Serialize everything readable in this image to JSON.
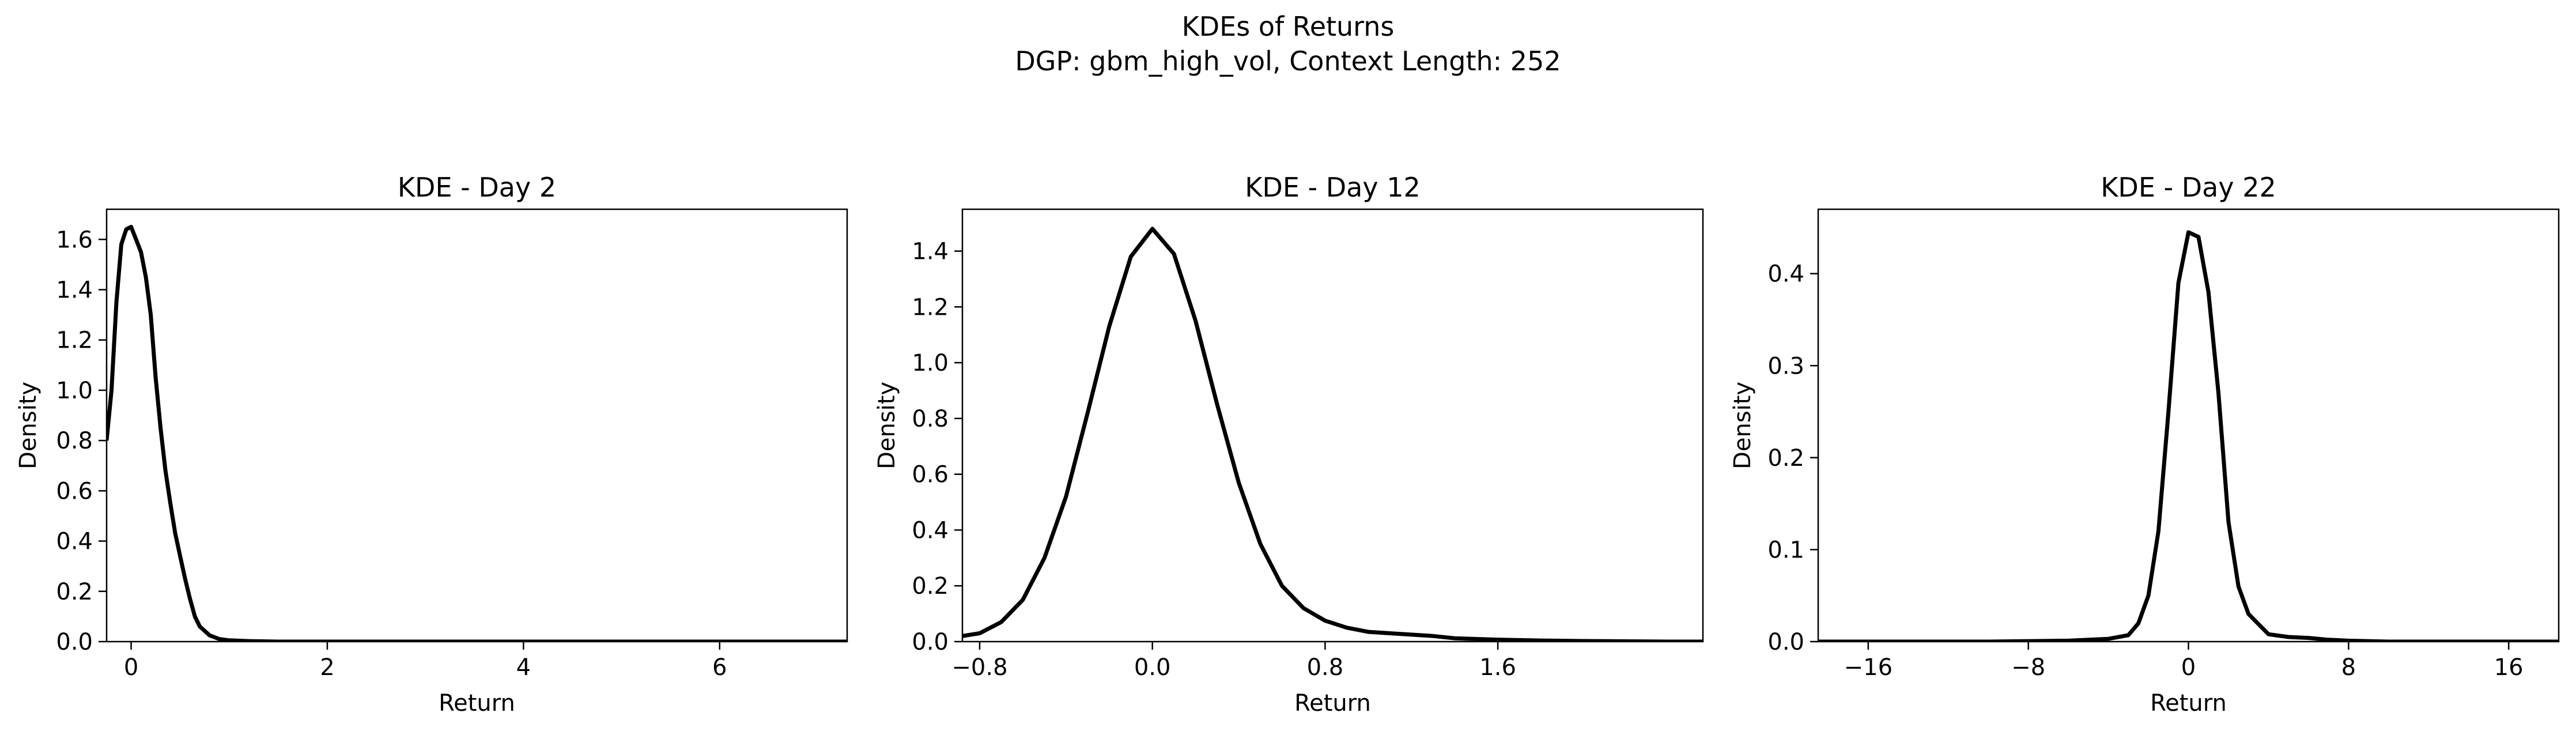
{
  "figure": {
    "title_line1": "KDEs of Returns",
    "title_line2": "DGP: gbm_high_vol, Context Length: 252"
  },
  "chart_data": [
    {
      "type": "line",
      "title": "KDE - Day 2",
      "xlabel": "Return",
      "ylabel": "Density",
      "xlim": [
        -0.25,
        7.3
      ],
      "ylim": [
        0,
        1.72
      ],
      "xticks": [
        0,
        2,
        4,
        6
      ],
      "xtick_labels": [
        "0",
        "2",
        "4",
        "6"
      ],
      "yticks": [
        0,
        0.2,
        0.4,
        0.6,
        0.8,
        1.0,
        1.2,
        1.4,
        1.6
      ],
      "ytick_labels": [
        "0.0",
        "0.2",
        "0.4",
        "0.6",
        "0.8",
        "1.0",
        "1.2",
        "1.4",
        "1.6"
      ],
      "grid": false,
      "color": "#000000",
      "series": [
        {
          "x": [
            -0.25,
            -0.2,
            -0.15,
            -0.1,
            -0.05,
            0.0,
            0.05,
            0.1,
            0.15,
            0.2,
            0.25,
            0.3,
            0.35,
            0.4,
            0.45,
            0.5,
            0.55,
            0.6,
            0.65,
            0.7,
            0.8,
            0.9,
            1.0,
            1.2,
            1.5,
            2.0,
            3.0,
            4.0,
            5.0,
            6.0,
            7.0,
            7.3
          ],
          "y": [
            0.8,
            1.0,
            1.35,
            1.58,
            1.64,
            1.65,
            1.6,
            1.55,
            1.45,
            1.3,
            1.05,
            0.85,
            0.68,
            0.55,
            0.43,
            0.34,
            0.25,
            0.17,
            0.1,
            0.06,
            0.025,
            0.01,
            0.005,
            0.002,
            0.0,
            0.0,
            0.0,
            0.0,
            0.0,
            0.0,
            0.0,
            0.0
          ]
        }
      ]
    },
    {
      "type": "line",
      "title": "KDE - Day 12",
      "xlabel": "Return",
      "ylabel": "Density",
      "xlim": [
        -0.88,
        2.55
      ],
      "ylim": [
        0,
        1.55
      ],
      "xticks": [
        -0.8,
        0.0,
        0.8,
        1.6
      ],
      "xtick_labels": [
        "−0.8",
        "0.0",
        "0.8",
        "1.6"
      ],
      "yticks": [
        0,
        0.2,
        0.4,
        0.6,
        0.8,
        1.0,
        1.2,
        1.4
      ],
      "ytick_labels": [
        "0.0",
        "0.2",
        "0.4",
        "0.6",
        "0.8",
        "1.0",
        "1.2",
        "1.4"
      ],
      "grid": false,
      "color": "#000000",
      "series": [
        {
          "x": [
            -0.88,
            -0.8,
            -0.7,
            -0.6,
            -0.5,
            -0.4,
            -0.3,
            -0.2,
            -0.1,
            0.0,
            0.1,
            0.2,
            0.3,
            0.4,
            0.5,
            0.6,
            0.7,
            0.8,
            0.9,
            1.0,
            1.1,
            1.2,
            1.3,
            1.4,
            1.6,
            1.8,
            2.0,
            2.2,
            2.4,
            2.55
          ],
          "y": [
            0.02,
            0.03,
            0.07,
            0.15,
            0.3,
            0.52,
            0.82,
            1.13,
            1.38,
            1.48,
            1.39,
            1.15,
            0.85,
            0.57,
            0.35,
            0.2,
            0.12,
            0.075,
            0.05,
            0.035,
            0.03,
            0.025,
            0.02,
            0.012,
            0.007,
            0.004,
            0.002,
            0.001,
            0.0,
            0.0
          ]
        }
      ]
    },
    {
      "type": "line",
      "title": "KDE - Day 22",
      "xlabel": "Return",
      "ylabel": "Density",
      "xlim": [
        -18.5,
        18.5
      ],
      "ylim": [
        0,
        0.47
      ],
      "xticks": [
        -16,
        -8,
        0,
        8,
        16
      ],
      "xtick_labels": [
        "−16",
        "−8",
        "0",
        "8",
        "16"
      ],
      "yticks": [
        0,
        0.1,
        0.2,
        0.3,
        0.4
      ],
      "ytick_labels": [
        "0.0",
        "0.1",
        "0.2",
        "0.3",
        "0.4"
      ],
      "grid": false,
      "color": "#000000",
      "series": [
        {
          "x": [
            -18.5,
            -14,
            -10,
            -6,
            -4,
            -3,
            -2.5,
            -2,
            -1.5,
            -1,
            -0.5,
            0,
            0.5,
            1,
            1.5,
            2,
            2.5,
            3,
            4,
            5,
            6,
            7,
            8,
            10,
            14,
            18.5
          ],
          "y": [
            0.0,
            0.0,
            0.0,
            0.001,
            0.003,
            0.007,
            0.02,
            0.05,
            0.12,
            0.25,
            0.39,
            0.445,
            0.44,
            0.38,
            0.27,
            0.13,
            0.06,
            0.03,
            0.008,
            0.005,
            0.004,
            0.002,
            0.001,
            0.0,
            0.0,
            0.0
          ]
        }
      ]
    }
  ]
}
